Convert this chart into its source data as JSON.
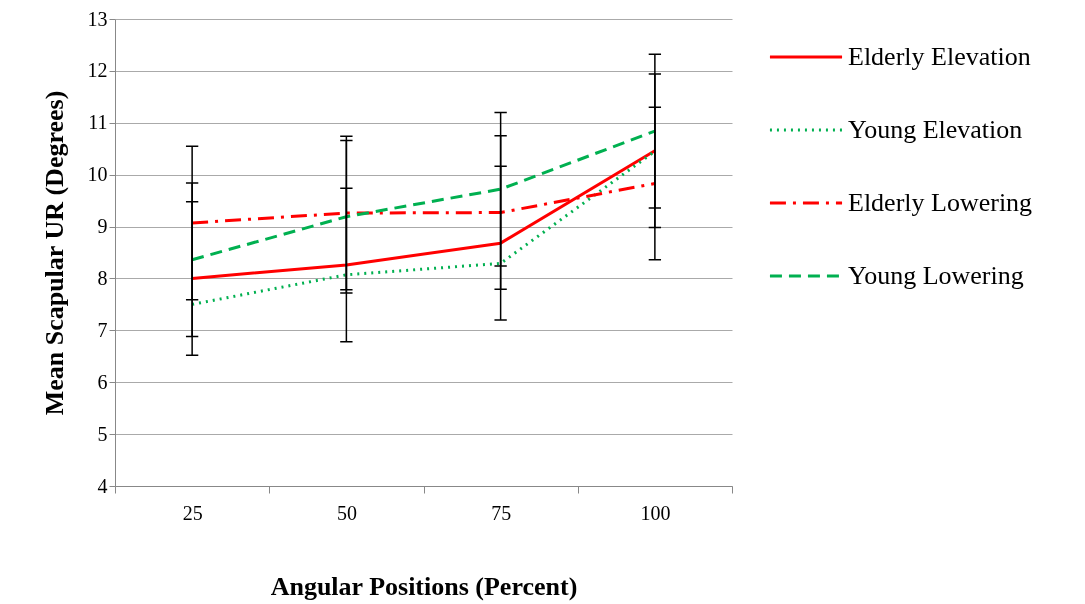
{
  "chart_data": {
    "type": "line",
    "xlabel": "Angular Positions (Percent)",
    "ylabel": "Mean Scapular UR (Degrees)",
    "categories": [
      "25",
      "50",
      "75",
      "100"
    ],
    "ylim": [
      4,
      13
    ],
    "yticks": [
      4,
      5,
      6,
      7,
      8,
      9,
      10,
      11,
      12,
      13
    ],
    "grid": "y",
    "legend": "right",
    "marker": "none",
    "series": [
      {
        "name": "Elderly Elevation",
        "color": "#ff0000",
        "line_style": "solid",
        "values": [
          8.0,
          8.26,
          8.68,
          10.46
        ],
        "errors": [
          1.48,
          1.48,
          1.48,
          1.48
        ]
      },
      {
        "name": "Young Elevation",
        "color": "#00b050",
        "line_style": "dotted",
        "values": [
          7.5,
          8.07,
          8.29,
          10.45
        ]
      },
      {
        "name": "Elderly Lowering",
        "color": "#ff0000",
        "line_style": "dashdot",
        "values": [
          9.07,
          9.26,
          9.27,
          9.83
        ],
        "errors": [
          1.48,
          1.48,
          1.48,
          1.47
        ]
      },
      {
        "name": "Young Lowering",
        "color": "#00b050",
        "line_style": "dashed",
        "values": [
          8.36,
          9.19,
          9.72,
          10.84
        ],
        "errors": [
          1.48,
          1.47,
          1.48,
          1.48
        ]
      }
    ]
  }
}
